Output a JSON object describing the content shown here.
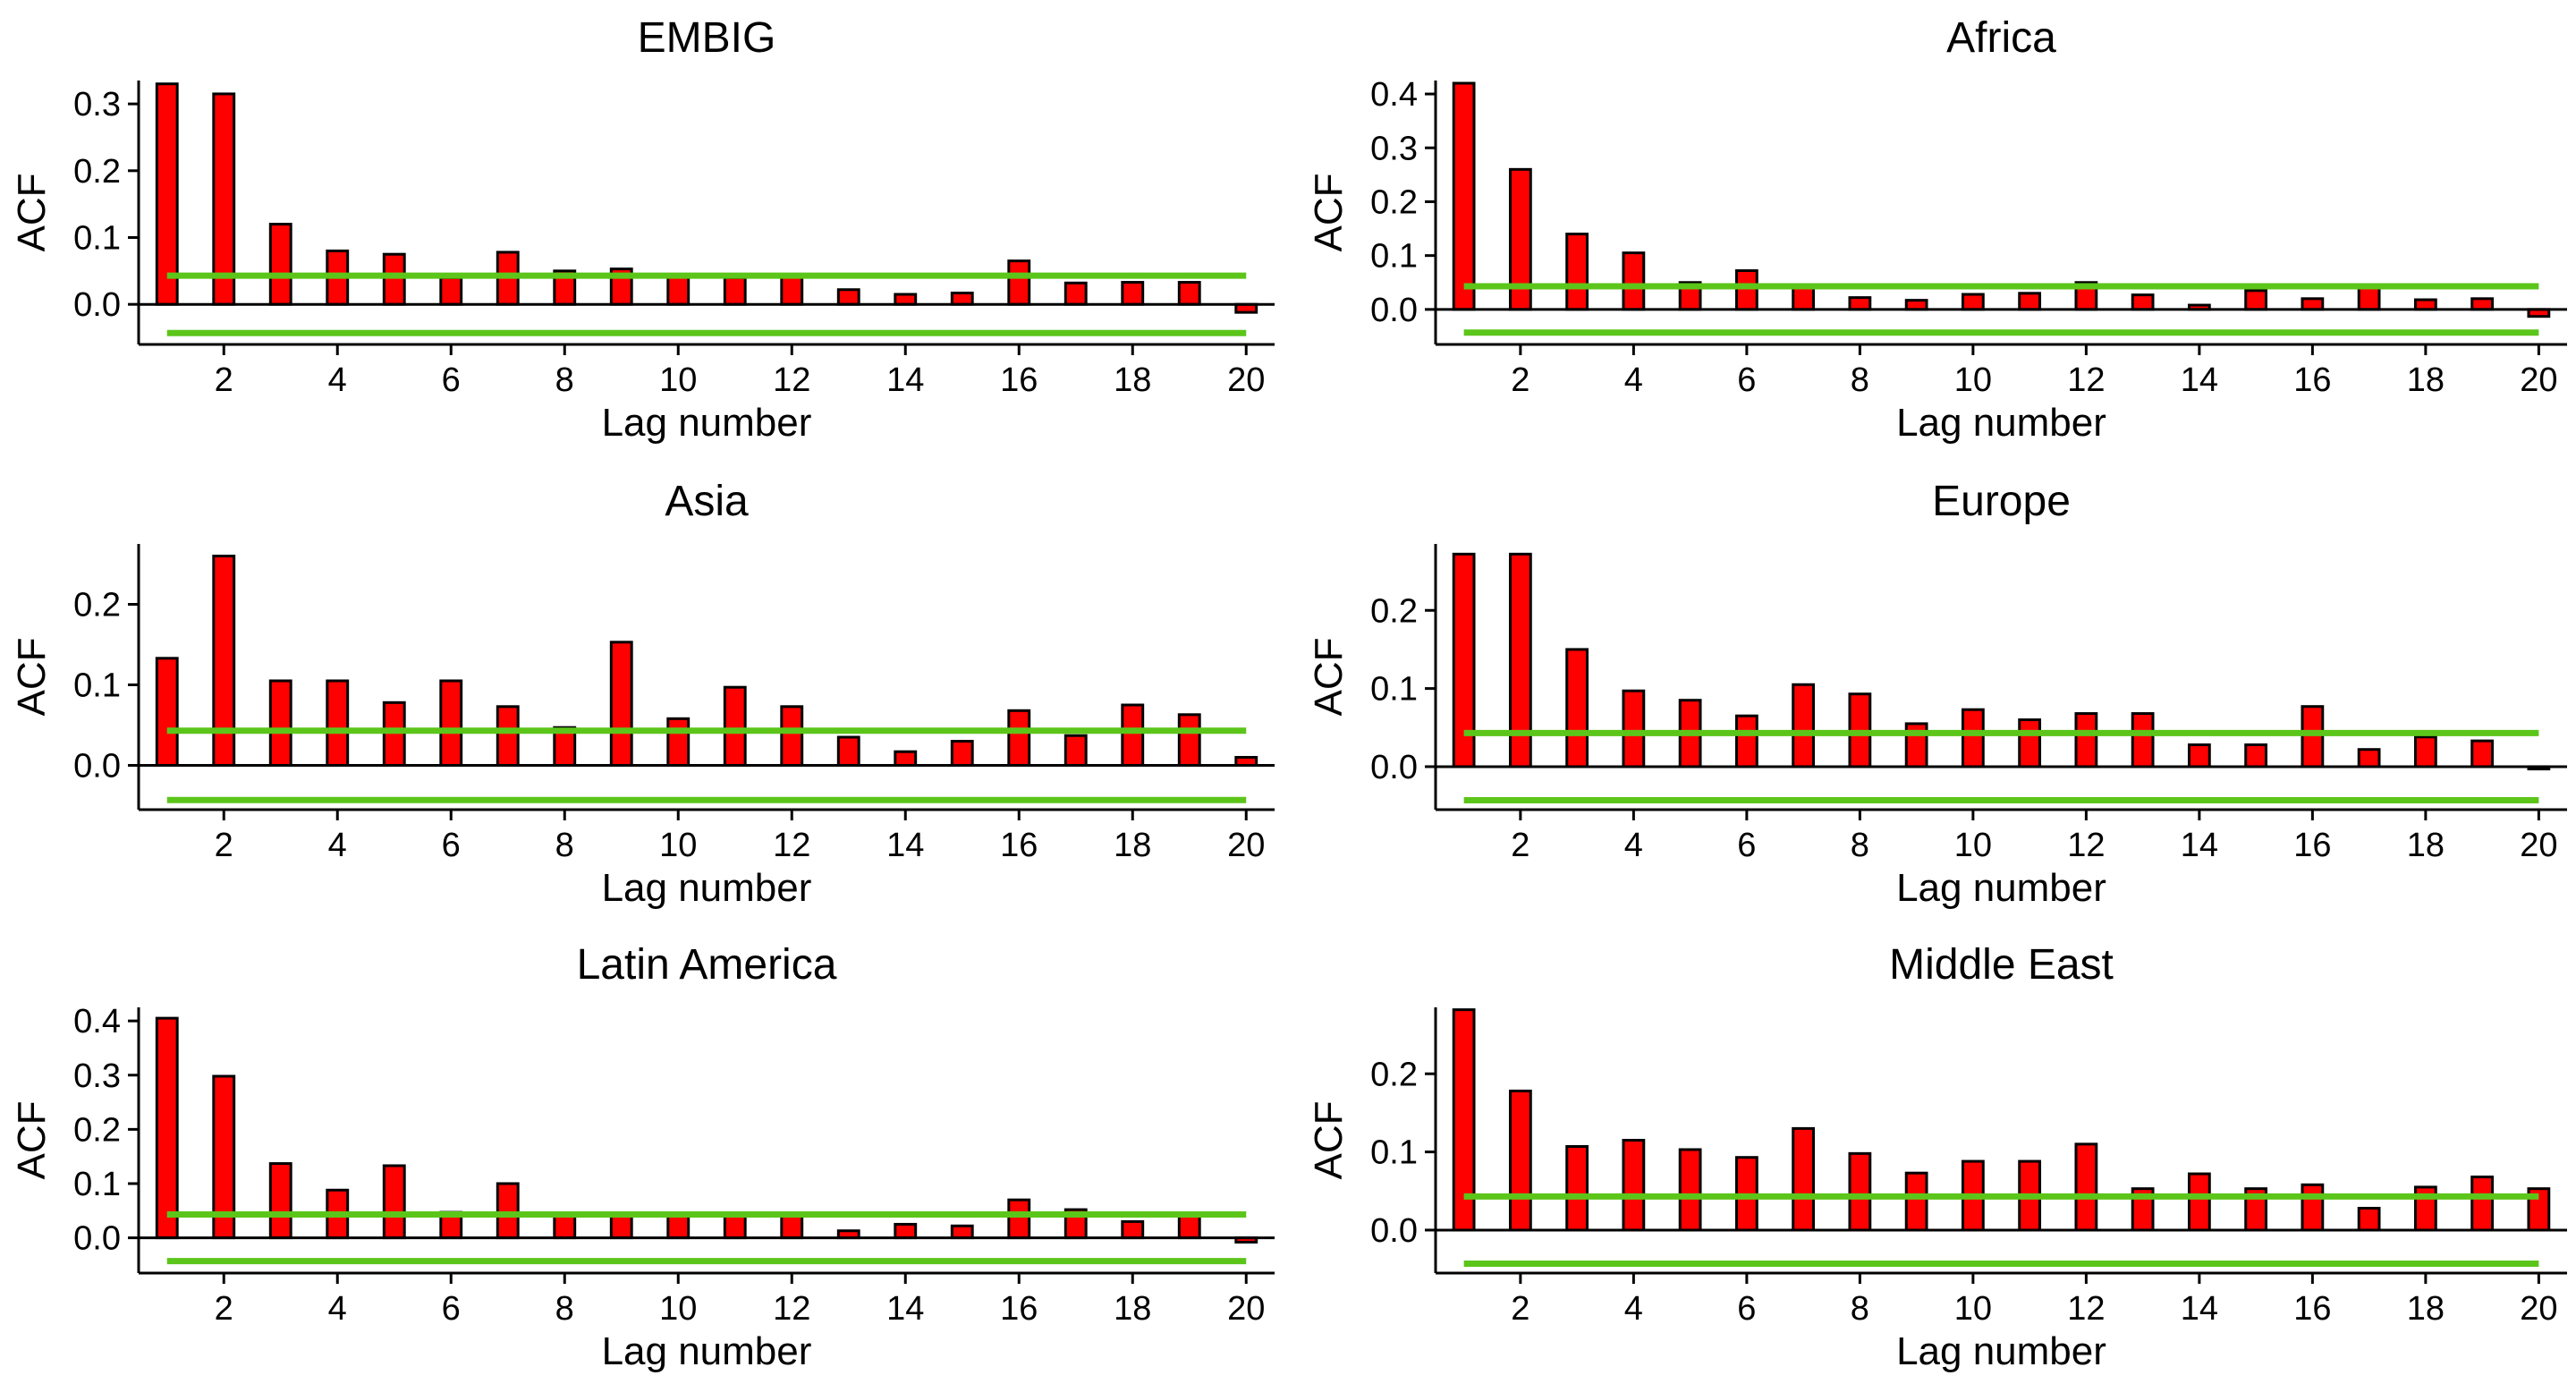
{
  "colors": {
    "bar_fill": "#ff0000",
    "bar_stroke": "#000000",
    "confidence_band": "#5cc51a",
    "axis": "#000000"
  },
  "chart_data": [
    {
      "type": "bar",
      "title": "EMBIG",
      "xlabel": "Lag number",
      "ylabel": "ACF",
      "x": [
        1,
        2,
        3,
        4,
        5,
        6,
        7,
        8,
        9,
        10,
        11,
        12,
        13,
        14,
        15,
        16,
        17,
        18,
        19,
        20
      ],
      "values": [
        0.33,
        0.315,
        0.12,
        0.08,
        0.075,
        0.04,
        0.078,
        0.05,
        0.053,
        0.045,
        0.04,
        0.042,
        0.022,
        0.015,
        0.017,
        0.065,
        0.032,
        0.033,
        0.033,
        -0.012
      ],
      "confidence_bounds": [
        0.043,
        -0.043
      ],
      "ylim": [
        -0.06,
        0.335
      ],
      "yticks": [
        0.0,
        0.1,
        0.2,
        0.3
      ],
      "ytick_labels": [
        "0.0",
        "0.1",
        "0.2",
        "0.3"
      ],
      "xticks": [
        2,
        4,
        6,
        8,
        10,
        12,
        14,
        16,
        18,
        20
      ],
      "xtick_labels": [
        "2",
        "4",
        "6",
        "8",
        "10",
        "12",
        "14",
        "16",
        "18",
        "20"
      ],
      "grid": false,
      "legend": "none"
    },
    {
      "type": "bar",
      "title": "Africa",
      "xlabel": "Lag number",
      "ylabel": "ACF",
      "x": [
        1,
        2,
        3,
        4,
        5,
        6,
        7,
        8,
        9,
        10,
        11,
        12,
        13,
        14,
        15,
        16,
        17,
        18,
        19,
        20
      ],
      "values": [
        0.42,
        0.26,
        0.14,
        0.105,
        0.05,
        0.072,
        0.04,
        0.022,
        0.017,
        0.028,
        0.03,
        0.05,
        0.027,
        0.008,
        0.035,
        0.02,
        0.04,
        0.018,
        0.02,
        -0.013
      ],
      "confidence_bounds": [
        0.043,
        -0.043
      ],
      "ylim": [
        -0.065,
        0.425
      ],
      "yticks": [
        0.0,
        0.1,
        0.2,
        0.3,
        0.4
      ],
      "ytick_labels": [
        "0.0",
        "0.1",
        "0.2",
        "0.3",
        "0.4"
      ],
      "xticks": [
        2,
        4,
        6,
        8,
        10,
        12,
        14,
        16,
        18,
        20
      ],
      "xtick_labels": [
        "2",
        "4",
        "6",
        "8",
        "10",
        "12",
        "14",
        "16",
        "18",
        "20"
      ],
      "grid": false,
      "legend": "none"
    },
    {
      "type": "bar",
      "title": "Asia",
      "xlabel": "Lag number",
      "ylabel": "ACF",
      "x": [
        1,
        2,
        3,
        4,
        5,
        6,
        7,
        8,
        9,
        10,
        11,
        12,
        13,
        14,
        15,
        16,
        17,
        18,
        19,
        20
      ],
      "values": [
        0.133,
        0.26,
        0.105,
        0.105,
        0.078,
        0.105,
        0.073,
        0.047,
        0.153,
        0.058,
        0.097,
        0.073,
        0.035,
        0.017,
        0.03,
        0.068,
        0.037,
        0.075,
        0.063,
        0.01
      ],
      "confidence_bounds": [
        0.043,
        -0.043
      ],
      "ylim": [
        -0.055,
        0.275
      ],
      "yticks": [
        0.0,
        0.1,
        0.2
      ],
      "ytick_labels": [
        "0.0",
        "0.1",
        "0.2"
      ],
      "xticks": [
        2,
        4,
        6,
        8,
        10,
        12,
        14,
        16,
        18,
        20
      ],
      "xtick_labels": [
        "2",
        "4",
        "6",
        "8",
        "10",
        "12",
        "14",
        "16",
        "18",
        "20"
      ],
      "grid": false,
      "legend": "none"
    },
    {
      "type": "bar",
      "title": "Europe",
      "xlabel": "Lag number",
      "ylabel": "ACF",
      "x": [
        1,
        2,
        3,
        4,
        5,
        6,
        7,
        8,
        9,
        10,
        11,
        12,
        13,
        14,
        15,
        16,
        17,
        18,
        19,
        20
      ],
      "values": [
        0.272,
        0.272,
        0.15,
        0.097,
        0.085,
        0.065,
        0.105,
        0.093,
        0.055,
        0.073,
        0.06,
        0.068,
        0.068,
        0.028,
        0.028,
        0.077,
        0.022,
        0.038,
        0.033,
        -0.003
      ],
      "confidence_bounds": [
        0.043,
        -0.043
      ],
      "ylim": [
        -0.055,
        0.285
      ],
      "yticks": [
        0.0,
        0.1,
        0.2
      ],
      "ytick_labels": [
        "0.0",
        "0.1",
        "0.2"
      ],
      "xticks": [
        2,
        4,
        6,
        8,
        10,
        12,
        14,
        16,
        18,
        20
      ],
      "xtick_labels": [
        "2",
        "4",
        "6",
        "8",
        "10",
        "12",
        "14",
        "16",
        "18",
        "20"
      ],
      "grid": false,
      "legend": "none"
    },
    {
      "type": "bar",
      "title": "Latin America",
      "xlabel": "Lag number",
      "ylabel": "ACF",
      "x": [
        1,
        2,
        3,
        4,
        5,
        6,
        7,
        8,
        9,
        10,
        11,
        12,
        13,
        14,
        15,
        16,
        17,
        18,
        19,
        20
      ],
      "values": [
        0.405,
        0.298,
        0.137,
        0.088,
        0.133,
        0.047,
        0.1,
        0.04,
        0.04,
        0.04,
        0.04,
        0.04,
        0.013,
        0.025,
        0.022,
        0.07,
        0.052,
        0.03,
        0.04,
        -0.008
      ],
      "confidence_bounds": [
        0.043,
        -0.043
      ],
      "ylim": [
        -0.065,
        0.425
      ],
      "yticks": [
        0.0,
        0.1,
        0.2,
        0.3,
        0.4
      ],
      "ytick_labels": [
        "0.0",
        "0.1",
        "0.2",
        "0.3",
        "0.4"
      ],
      "xticks": [
        2,
        4,
        6,
        8,
        10,
        12,
        14,
        16,
        18,
        20
      ],
      "xtick_labels": [
        "2",
        "4",
        "6",
        "8",
        "10",
        "12",
        "14",
        "16",
        "18",
        "20"
      ],
      "grid": false,
      "legend": "none"
    },
    {
      "type": "bar",
      "title": "Middle East",
      "xlabel": "Lag number",
      "ylabel": "ACF",
      "x": [
        1,
        2,
        3,
        4,
        5,
        6,
        7,
        8,
        9,
        10,
        11,
        12,
        13,
        14,
        15,
        16,
        17,
        18,
        19,
        20
      ],
      "values": [
        0.282,
        0.178,
        0.107,
        0.115,
        0.103,
        0.093,
        0.13,
        0.098,
        0.073,
        0.088,
        0.088,
        0.11,
        0.053,
        0.072,
        0.053,
        0.058,
        0.028,
        0.055,
        0.068,
        0.053
      ],
      "confidence_bounds": [
        0.043,
        -0.043
      ],
      "ylim": [
        -0.055,
        0.285
      ],
      "yticks": [
        0.0,
        0.1,
        0.2
      ],
      "ytick_labels": [
        "0.0",
        "0.1",
        "0.2"
      ],
      "xticks": [
        2,
        4,
        6,
        8,
        10,
        12,
        14,
        16,
        18,
        20
      ],
      "xtick_labels": [
        "2",
        "4",
        "6",
        "8",
        "10",
        "12",
        "14",
        "16",
        "18",
        "20"
      ],
      "grid": false,
      "legend": "none"
    }
  ]
}
